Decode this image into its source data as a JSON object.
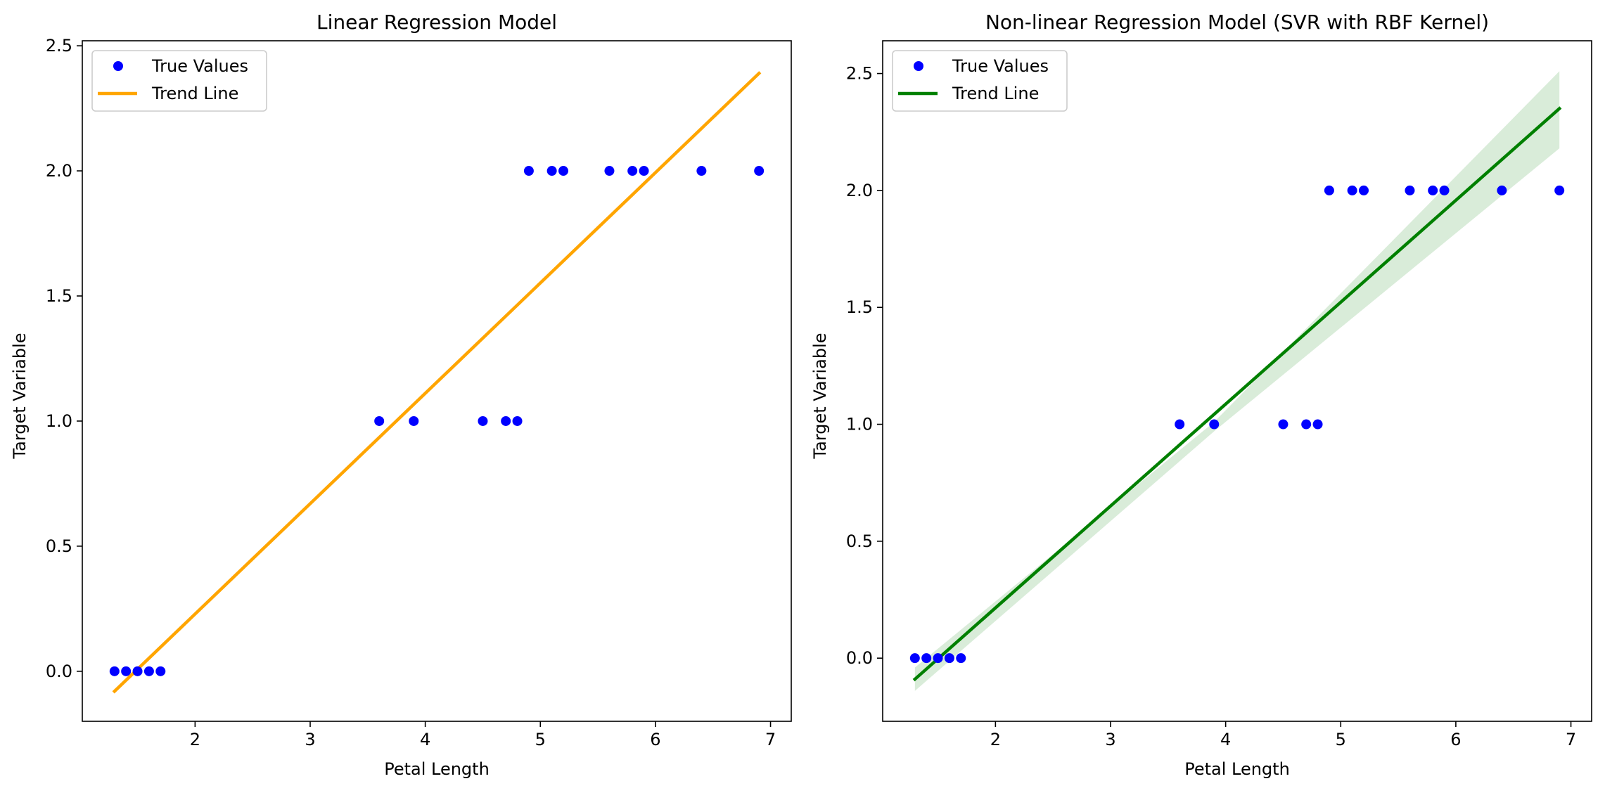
{
  "chart_data": [
    {
      "type": "scatter",
      "title": "Linear Regression Model",
      "xlabel": "Petal Length",
      "ylabel": "Target Variable",
      "xlim": [
        1.02,
        7.18
      ],
      "ylim": [
        -0.2,
        2.52
      ],
      "xticks": [
        "2",
        "3",
        "4",
        "5",
        "6",
        "7"
      ],
      "yticks": [
        "0.0",
        "0.5",
        "1.0",
        "1.5",
        "2.0",
        "2.5"
      ],
      "grid": false,
      "legend_position": "upper-left",
      "points": {
        "name": "True Values",
        "color": "#0000ff",
        "x": [
          1.3,
          1.4,
          1.5,
          1.6,
          1.7,
          3.6,
          3.9,
          4.5,
          4.7,
          4.8,
          4.9,
          5.1,
          5.2,
          5.6,
          5.8,
          5.9,
          6.4,
          6.9
        ],
        "y": [
          0,
          0,
          0,
          0,
          0,
          1,
          1,
          1,
          1,
          1,
          2,
          2,
          2,
          2,
          2,
          2,
          2,
          2
        ]
      },
      "trend": {
        "name": "Trend Line",
        "color": "#ffa500",
        "x": [
          1.3,
          6.9
        ],
        "y": [
          -0.08,
          2.39
        ]
      }
    },
    {
      "type": "scatter",
      "title": "Non-linear Regression Model (SVR with RBF Kernel)",
      "xlabel": "Petal Length",
      "ylabel": "Target Variable",
      "xlim": [
        1.02,
        7.18
      ],
      "ylim": [
        -0.27,
        2.64
      ],
      "xticks": [
        "2",
        "3",
        "4",
        "5",
        "6",
        "7"
      ],
      "yticks": [
        "0.0",
        "0.5",
        "1.0",
        "1.5",
        "2.0",
        "2.5"
      ],
      "grid": false,
      "legend_position": "upper-left",
      "points": {
        "name": "True Values",
        "color": "#0000ff",
        "x": [
          1.3,
          1.4,
          1.5,
          1.6,
          1.7,
          3.6,
          3.9,
          4.5,
          4.7,
          4.8,
          4.9,
          5.1,
          5.2,
          5.6,
          5.8,
          5.9,
          6.4,
          6.9
        ],
        "y": [
          0,
          0,
          0,
          0,
          0,
          1,
          1,
          1,
          1,
          1,
          2,
          2,
          2,
          2,
          2,
          2,
          2,
          2
        ]
      },
      "trend": {
        "name": "Trend Line",
        "color": "#008000",
        "x": [
          1.3,
          6.9
        ],
        "y": [
          -0.09,
          2.35
        ]
      },
      "band": {
        "color": "#008000",
        "x": [
          1.3,
          3.9,
          6.9
        ],
        "lower": [
          -0.14,
          0.97,
          2.18
        ],
        "upper": [
          -0.04,
          1.01,
          2.51
        ]
      }
    }
  ]
}
